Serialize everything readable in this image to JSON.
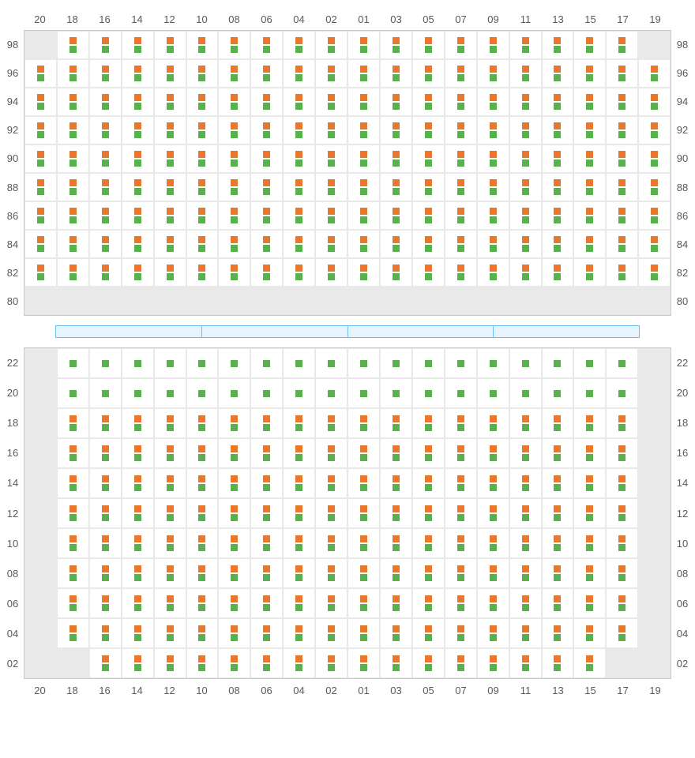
{
  "colors": {
    "orange": "#e8782e",
    "green": "#59b04f",
    "cell_bg": "#ffffff",
    "empty_bg": "#e9e9e9",
    "grid_border": "#c8c8c8",
    "label_color": "#5a5a5a",
    "divider_border": "#6bbef2",
    "divider_fill": "#e6f4fd"
  },
  "layout": {
    "columns": [
      "20",
      "18",
      "16",
      "14",
      "12",
      "10",
      "08",
      "06",
      "04",
      "02",
      "01",
      "03",
      "05",
      "07",
      "09",
      "11",
      "13",
      "15",
      "17",
      "19"
    ],
    "top_block": {
      "rows": [
        "98",
        "96",
        "94",
        "92",
        "90",
        "88",
        "86",
        "84",
        "82",
        "80"
      ],
      "cells_comment": "0=empty grey, 1=green only, 2=orange+green",
      "cells": [
        [
          0,
          2,
          2,
          2,
          2,
          2,
          2,
          2,
          2,
          2,
          2,
          2,
          2,
          2,
          2,
          2,
          2,
          2,
          2,
          0
        ],
        [
          2,
          2,
          2,
          2,
          2,
          2,
          2,
          2,
          2,
          2,
          2,
          2,
          2,
          2,
          2,
          2,
          2,
          2,
          2,
          2
        ],
        [
          2,
          2,
          2,
          2,
          2,
          2,
          2,
          2,
          2,
          2,
          2,
          2,
          2,
          2,
          2,
          2,
          2,
          2,
          2,
          2
        ],
        [
          2,
          2,
          2,
          2,
          2,
          2,
          2,
          2,
          2,
          2,
          2,
          2,
          2,
          2,
          2,
          2,
          2,
          2,
          2,
          2
        ],
        [
          2,
          2,
          2,
          2,
          2,
          2,
          2,
          2,
          2,
          2,
          2,
          2,
          2,
          2,
          2,
          2,
          2,
          2,
          2,
          2
        ],
        [
          2,
          2,
          2,
          2,
          2,
          2,
          2,
          2,
          2,
          2,
          2,
          2,
          2,
          2,
          2,
          2,
          2,
          2,
          2,
          2
        ],
        [
          2,
          2,
          2,
          2,
          2,
          2,
          2,
          2,
          2,
          2,
          2,
          2,
          2,
          2,
          2,
          2,
          2,
          2,
          2,
          2
        ],
        [
          2,
          2,
          2,
          2,
          2,
          2,
          2,
          2,
          2,
          2,
          2,
          2,
          2,
          2,
          2,
          2,
          2,
          2,
          2,
          2
        ],
        [
          2,
          2,
          2,
          2,
          2,
          2,
          2,
          2,
          2,
          2,
          2,
          2,
          2,
          2,
          2,
          2,
          2,
          2,
          2,
          2
        ],
        [
          0,
          0,
          0,
          0,
          0,
          0,
          0,
          0,
          0,
          0,
          0,
          0,
          0,
          0,
          0,
          0,
          0,
          0,
          0,
          0
        ]
      ]
    },
    "bottom_block": {
      "rows": [
        "22",
        "20",
        "18",
        "16",
        "14",
        "12",
        "10",
        "08",
        "06",
        "04",
        "02"
      ],
      "cells": [
        [
          0,
          1,
          1,
          1,
          1,
          1,
          1,
          1,
          1,
          1,
          1,
          1,
          1,
          1,
          1,
          1,
          1,
          1,
          1,
          0
        ],
        [
          0,
          1,
          1,
          1,
          1,
          1,
          1,
          1,
          1,
          1,
          1,
          1,
          1,
          1,
          1,
          1,
          1,
          1,
          1,
          0
        ],
        [
          0,
          2,
          2,
          2,
          2,
          2,
          2,
          2,
          2,
          2,
          2,
          2,
          2,
          2,
          2,
          2,
          2,
          2,
          2,
          0
        ],
        [
          0,
          2,
          2,
          2,
          2,
          2,
          2,
          2,
          2,
          2,
          2,
          2,
          2,
          2,
          2,
          2,
          2,
          2,
          2,
          0
        ],
        [
          0,
          2,
          2,
          2,
          2,
          2,
          2,
          2,
          2,
          2,
          2,
          2,
          2,
          2,
          2,
          2,
          2,
          2,
          2,
          0
        ],
        [
          0,
          2,
          2,
          2,
          2,
          2,
          2,
          2,
          2,
          2,
          2,
          2,
          2,
          2,
          2,
          2,
          2,
          2,
          2,
          0
        ],
        [
          0,
          2,
          2,
          2,
          2,
          2,
          2,
          2,
          2,
          2,
          2,
          2,
          2,
          2,
          2,
          2,
          2,
          2,
          2,
          0
        ],
        [
          0,
          2,
          2,
          2,
          2,
          2,
          2,
          2,
          2,
          2,
          2,
          2,
          2,
          2,
          2,
          2,
          2,
          2,
          2,
          0
        ],
        [
          0,
          2,
          2,
          2,
          2,
          2,
          2,
          2,
          2,
          2,
          2,
          2,
          2,
          2,
          2,
          2,
          2,
          2,
          2,
          0
        ],
        [
          0,
          2,
          2,
          2,
          2,
          2,
          2,
          2,
          2,
          2,
          2,
          2,
          2,
          2,
          2,
          2,
          2,
          2,
          2,
          0
        ],
        [
          0,
          0,
          2,
          2,
          2,
          2,
          2,
          2,
          2,
          2,
          2,
          2,
          2,
          2,
          2,
          2,
          2,
          2,
          0,
          0
        ]
      ]
    },
    "divider_segments": 4
  }
}
